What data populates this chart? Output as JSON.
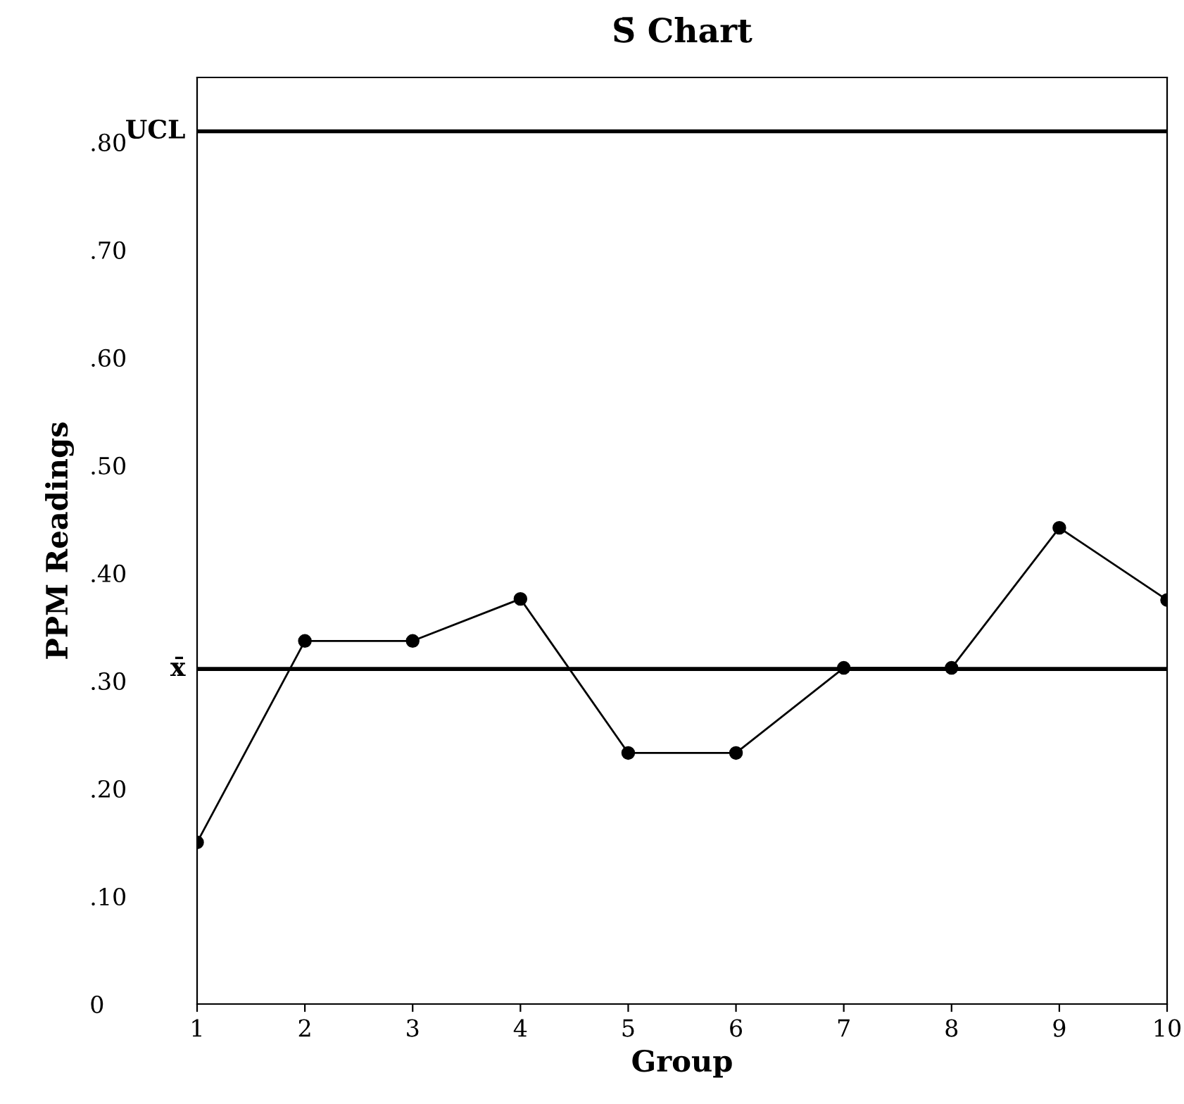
{
  "chart_data": {
    "type": "line",
    "title": "S̄ Chart",
    "xlabel": "Group",
    "ylabel": "PPM Readings",
    "x": [
      1,
      2,
      3,
      4,
      5,
      6,
      7,
      8,
      9,
      10
    ],
    "series": [
      {
        "color": "#000000",
        "values": [
          0.15,
          0.337,
          0.337,
          0.376,
          0.233,
          0.233,
          0.312,
          0.312,
          0.442,
          0.375
        ]
      }
    ],
    "marker": "circle",
    "line_style": "solid",
    "grid": false,
    "legend": false,
    "xlim": [
      1,
      10
    ],
    "xticks": [
      1,
      2,
      3,
      4,
      5,
      6,
      7,
      8,
      9,
      10
    ],
    "ylim": [
      0,
      0.86
    ],
    "yticks": [
      0,
      {
        "value": 0.1,
        "label": ".10"
      },
      {
        "value": 0.2,
        "label": ".20"
      },
      {
        "value": 0.3,
        "label": ".30"
      },
      {
        "value": 0.4,
        "label": ".40"
      },
      {
        "value": 0.5,
        "label": ".50"
      },
      {
        "value": 0.6,
        "label": ".60"
      },
      {
        "value": 0.7,
        "label": ".70"
      },
      {
        "value": 0.8,
        "label": ".80"
      }
    ],
    "ref_lines": [
      {
        "axis": "y",
        "value": 0.81,
        "label": "UCL",
        "color": "#000000",
        "line_style": "solid"
      },
      {
        "axis": "y",
        "value": 0.311,
        "label": "x̄",
        "color": "#000000",
        "line_style": "solid"
      }
    ]
  }
}
